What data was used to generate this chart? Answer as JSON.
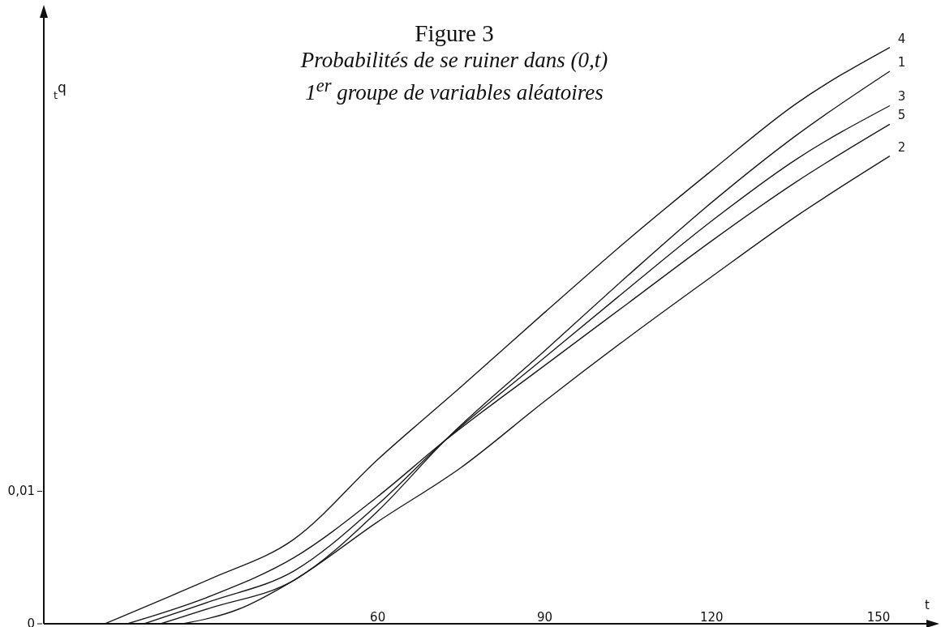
{
  "chart_data": {
    "type": "line",
    "title": "Figure 3",
    "subtitle": "Probabilités de se ruiner dans (0,t)\n1$^{er}$ groupe de variables aléatoires",
    "xlabel": "t",
    "ylabel": "$_{t}$q",
    "xlim": [
      0,
      158
    ],
    "xticks": [
      60,
      90,
      120,
      150
    ],
    "ylim": [
      0,
      0.045
    ],
    "yticks": [
      0,
      {
        "value": 0.01,
        "label": "0,01"
      }
    ],
    "grid": false,
    "legend": false,
    "marker": "none",
    "line_style": "solid",
    "series": [
      {
        "name": "4",
        "color": "#1a1a1a",
        "x": [
          11,
          20,
          30,
          45,
          60,
          75,
          90,
          105,
          120,
          135,
          152
        ],
        "values": [
          0,
          0.0016,
          0.0034,
          0.0064,
          0.0124,
          0.0179,
          0.0235,
          0.029,
          0.0342,
          0.0392,
          0.0435
        ]
      },
      {
        "name": "1",
        "color": "#1a1a1a",
        "x": [
          21,
          30,
          45,
          60,
          72,
          90,
          105,
          120,
          135,
          152
        ],
        "values": [
          0,
          0.0012,
          0.0033,
          0.0085,
          0.0138,
          0.0206,
          0.0263,
          0.0318,
          0.0368,
          0.0417
        ]
      },
      {
        "name": "3",
        "color": "#1a1a1a",
        "x": [
          18,
          30,
          45,
          60,
          72,
          90,
          105,
          120,
          135,
          152
        ],
        "values": [
          0,
          0.0017,
          0.004,
          0.009,
          0.0138,
          0.0201,
          0.0253,
          0.0304,
          0.035,
          0.0391
        ]
      },
      {
        "name": "5",
        "color": "#1a1a1a",
        "x": [
          15,
          30,
          45,
          60,
          72,
          90,
          105,
          120,
          135,
          152
        ],
        "values": [
          0,
          0.0021,
          0.005,
          0.0096,
          0.0138,
          0.0195,
          0.0242,
          0.0289,
          0.0333,
          0.0377
        ]
      },
      {
        "name": "2",
        "color": "#1a1a1a",
        "x": [
          25,
          35,
          45,
          60,
          75,
          90,
          105,
          120,
          135,
          152
        ],
        "values": [
          0,
          0.0011,
          0.0033,
          0.0077,
          0.0118,
          0.0168,
          0.0216,
          0.0262,
          0.0307,
          0.0353
        ]
      }
    ]
  }
}
